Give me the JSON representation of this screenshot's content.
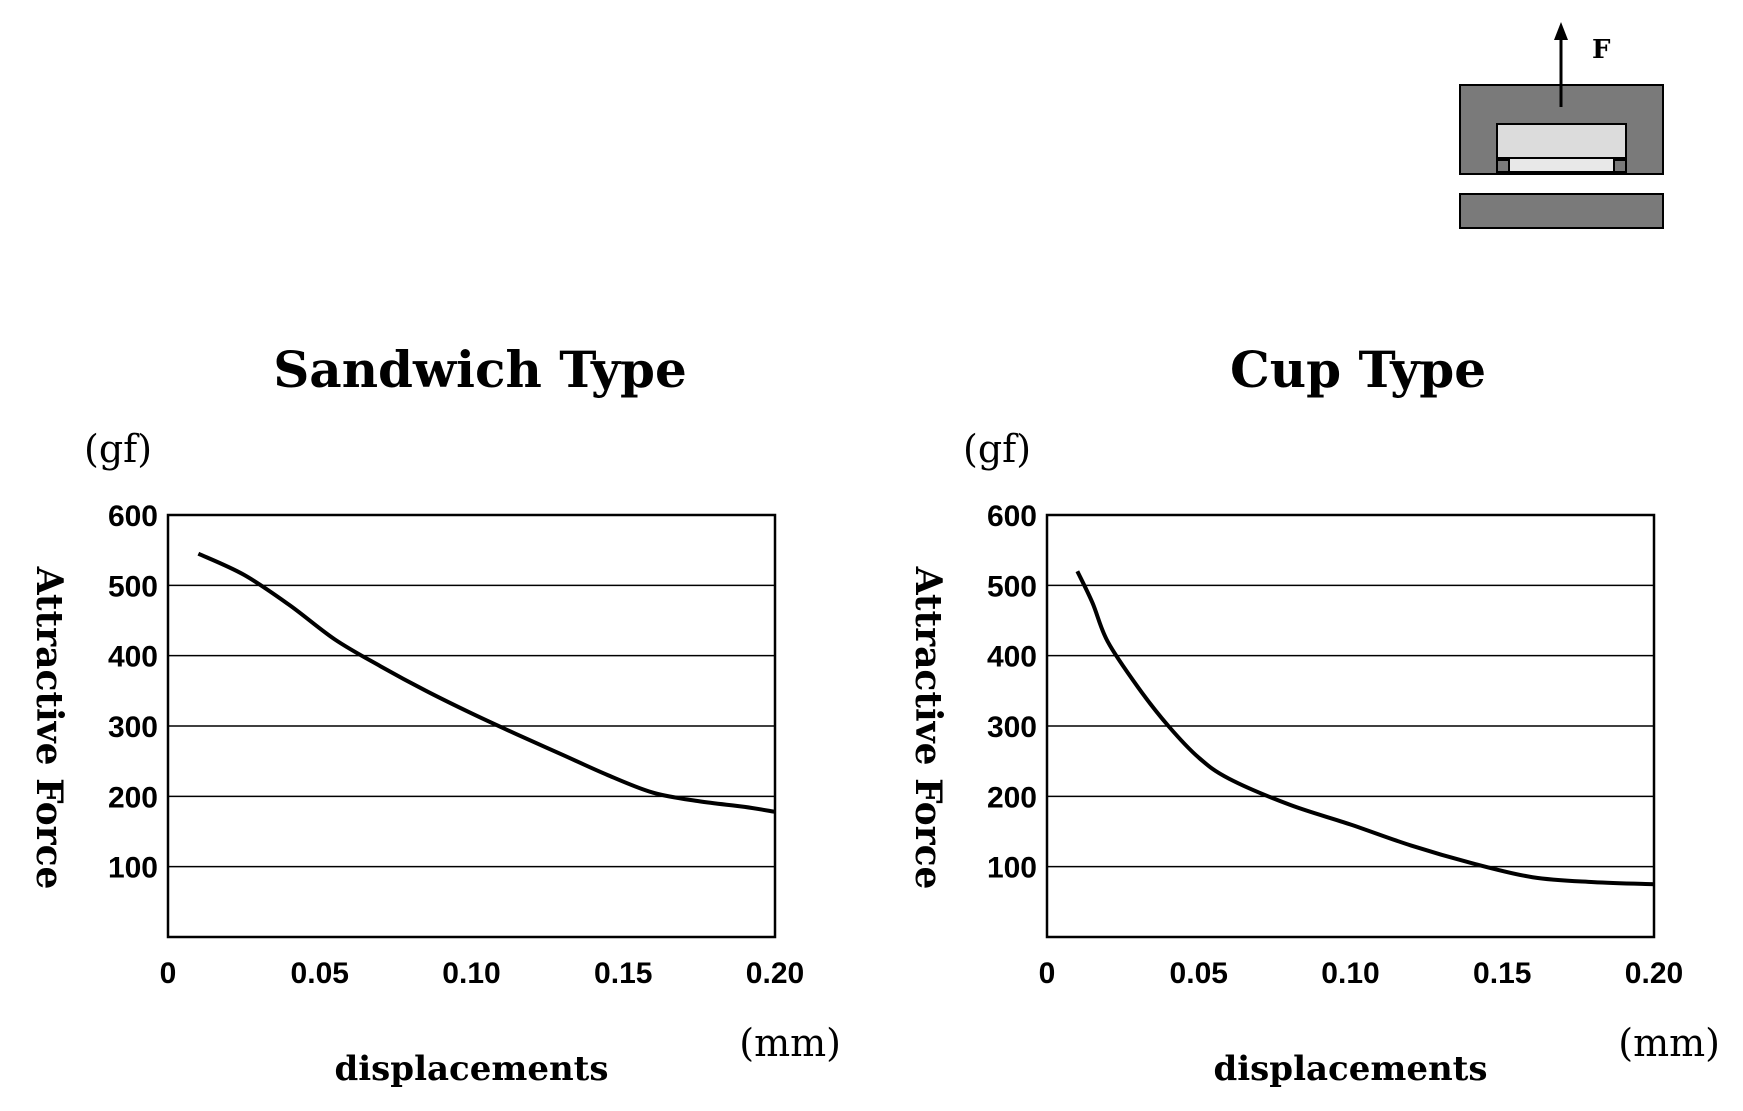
{
  "diagram": {
    "force_label": "F",
    "colors": {
      "fill": "#7a7a7a",
      "magnet": "#dcdcdc",
      "stroke": "#000000"
    }
  },
  "chart_data": [
    {
      "type": "line",
      "title": "Sandwich Type",
      "xlabel": "displacements",
      "x_unit": "(mm)",
      "ylabel": "Attractive Force",
      "y_unit": "(gf)",
      "xlim": [
        0,
        0.2
      ],
      "ylim": [
        0,
        600
      ],
      "x_ticks": [
        "0",
        "0.05",
        "0.10",
        "0.15",
        "0.20"
      ],
      "y_ticks": [
        "100",
        "200",
        "300",
        "400",
        "500",
        "600"
      ],
      "grid": "horizontal",
      "series": [
        {
          "x": [
            0.01,
            0.025,
            0.04,
            0.055,
            0.07,
            0.085,
            0.1,
            0.115,
            0.13,
            0.145,
            0.16,
            0.175,
            0.19,
            0.2
          ],
          "y": [
            545,
            515,
            472,
            423,
            385,
            350,
            318,
            288,
            259,
            230,
            205,
            193,
            185,
            178
          ]
        }
      ]
    },
    {
      "type": "line",
      "title": "Cup Type",
      "xlabel": "displacements",
      "x_unit": "(mm)",
      "ylabel": "Attractive Force",
      "y_unit": "(gf)",
      "xlim": [
        0,
        0.2
      ],
      "ylim": [
        0,
        600
      ],
      "x_ticks": [
        "0",
        "0.05",
        "0.10",
        "0.15",
        "0.20"
      ],
      "y_ticks": [
        "100",
        "200",
        "300",
        "400",
        "500",
        "600"
      ],
      "grid": "horizontal",
      "series": [
        {
          "x": [
            0.01,
            0.015,
            0.02,
            0.03,
            0.04,
            0.05,
            0.06,
            0.08,
            0.1,
            0.12,
            0.14,
            0.16,
            0.18,
            0.2
          ],
          "y": [
            520,
            475,
            420,
            355,
            300,
            255,
            225,
            188,
            160,
            130,
            105,
            85,
            78,
            75
          ]
        }
      ]
    }
  ]
}
